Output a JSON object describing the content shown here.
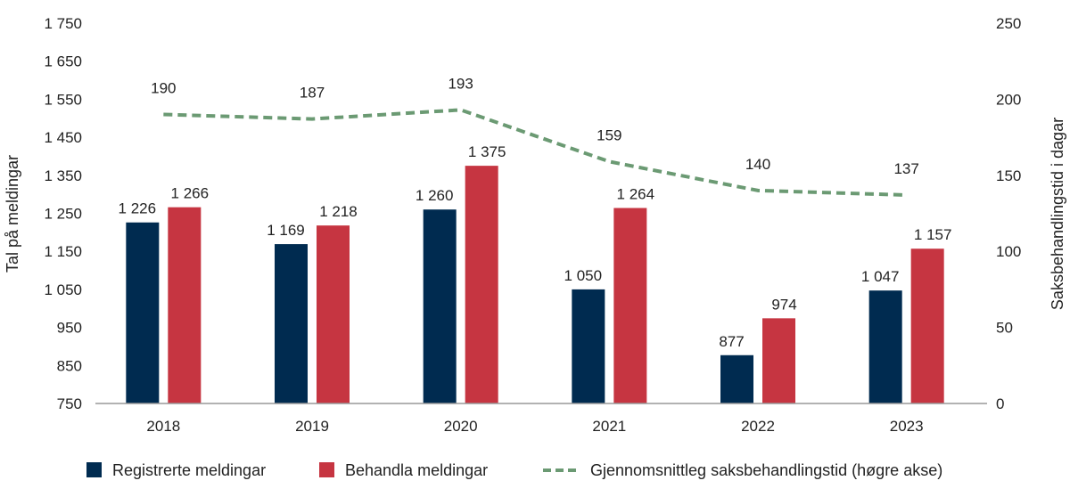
{
  "chart_data": {
    "type": "bar",
    "categories": [
      "2018",
      "2019",
      "2020",
      "2021",
      "2022",
      "2023"
    ],
    "series": [
      {
        "name": "Registrerte meldingar",
        "type": "bar",
        "axis": "left",
        "color": "#002b50",
        "values": [
          1226,
          1169,
          1260,
          1050,
          877,
          1047
        ],
        "labels": [
          "1 226",
          "1 169",
          "1 260",
          "1 050",
          "877",
          "1 047"
        ]
      },
      {
        "name": "Behandla meldingar",
        "type": "bar",
        "axis": "left",
        "color": "#c63541",
        "values": [
          1266,
          1218,
          1375,
          1264,
          974,
          1157
        ],
        "labels": [
          "1 266",
          "1 218",
          "1 375",
          "1 264",
          "974",
          "1 157"
        ]
      },
      {
        "name": "Gjennomsnittleg saksbehandlingstid (høgre akse)",
        "type": "line",
        "style": "dashed",
        "axis": "right",
        "color": "#6b9a73",
        "values": [
          190,
          187,
          193,
          159,
          140,
          137
        ],
        "labels": [
          "190",
          "187",
          "193",
          "159",
          "140",
          "137"
        ]
      }
    ],
    "ylabel": "Tal på meldingar",
    "y2label": "Saksbehandlingstid i dagar",
    "ylim": [
      750,
      1750
    ],
    "y2lim": [
      0,
      250
    ],
    "yticks": [
      750,
      850,
      950,
      1050,
      1150,
      1250,
      1350,
      1450,
      1550,
      1650,
      1750
    ],
    "ytick_labels": [
      "750",
      "850",
      "950",
      "1 050",
      "1 150",
      "1 250",
      "1 350",
      "1 450",
      "1 550",
      "1 650",
      "1 750"
    ],
    "y2ticks": [
      0,
      50,
      100,
      150,
      200,
      250
    ],
    "y2tick_labels": [
      "0",
      "50",
      "100",
      "150",
      "200",
      "250"
    ],
    "grid": false,
    "legend": "bottom"
  }
}
